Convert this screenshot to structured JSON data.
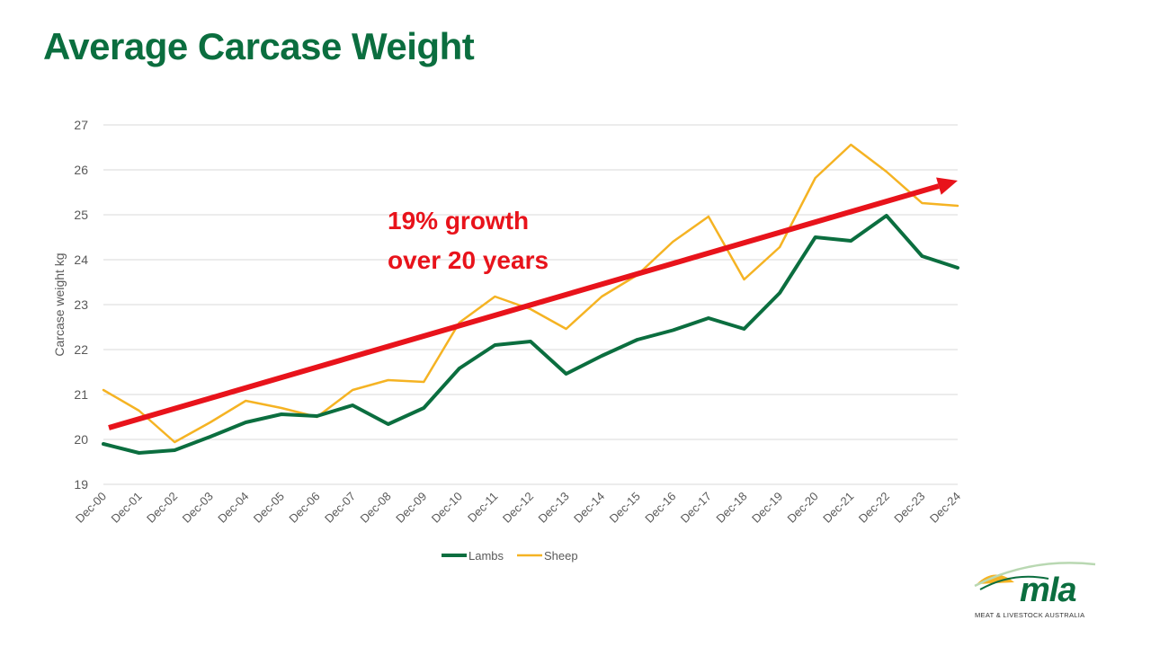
{
  "page": {
    "title": "Average Carcase Weight"
  },
  "colors": {
    "title": "#0b6e3f",
    "lambs": "#0b6e3f",
    "sheep": "#f5b323",
    "trend": "#e8131b",
    "grid": "#d9d9d9",
    "axis_text": "#595959"
  },
  "chart_data": {
    "type": "line",
    "title": "",
    "xlabel": "",
    "ylabel": "Carcase weight kg",
    "ylim": [
      19,
      27
    ],
    "yticks": [
      19,
      20,
      21,
      22,
      23,
      24,
      25,
      26,
      27
    ],
    "grid": true,
    "legend": "bottom",
    "categories": [
      "Dec-00",
      "Dec-01",
      "Dec-02",
      "Dec-03",
      "Dec-04",
      "Dec-05",
      "Dec-06",
      "Dec-07",
      "Dec-08",
      "Dec-09",
      "Dec-10",
      "Dec-11",
      "Dec-12",
      "Dec-13",
      "Dec-14",
      "Dec-15",
      "Dec-16",
      "Dec-17",
      "Dec-18",
      "Dec-19",
      "Dec-20",
      "Dec-21",
      "Dec-22",
      "Dec-23",
      "Dec-24"
    ],
    "series": [
      {
        "name": "Lambs",
        "values": [
          19.9,
          19.7,
          19.76,
          20.06,
          20.38,
          20.56,
          20.52,
          20.76,
          20.34,
          20.7,
          21.58,
          22.1,
          22.18,
          21.46,
          21.86,
          22.22,
          22.43,
          22.7,
          22.46,
          23.26,
          24.5,
          24.42,
          24.98,
          24.08,
          23.82
        ]
      },
      {
        "name": "Sheep",
        "values": [
          21.1,
          20.64,
          19.94,
          20.38,
          20.86,
          20.7,
          20.5,
          21.1,
          21.32,
          21.28,
          22.6,
          23.18,
          22.9,
          22.46,
          23.18,
          23.66,
          24.4,
          24.96,
          23.56,
          24.28,
          25.82,
          26.56,
          25.96,
          25.26,
          25.2
        ]
      }
    ],
    "annotation": {
      "text_line1": "19% growth",
      "text_line2": "over 20 years",
      "arrow_start": {
        "x": "Dec-00",
        "y": 20.26
      },
      "arrow_end": {
        "x": "Dec-24",
        "y": 25.76
      }
    }
  },
  "logo": {
    "word": "mla",
    "tagline": "MEAT & LIVESTOCK AUSTRALIA"
  }
}
